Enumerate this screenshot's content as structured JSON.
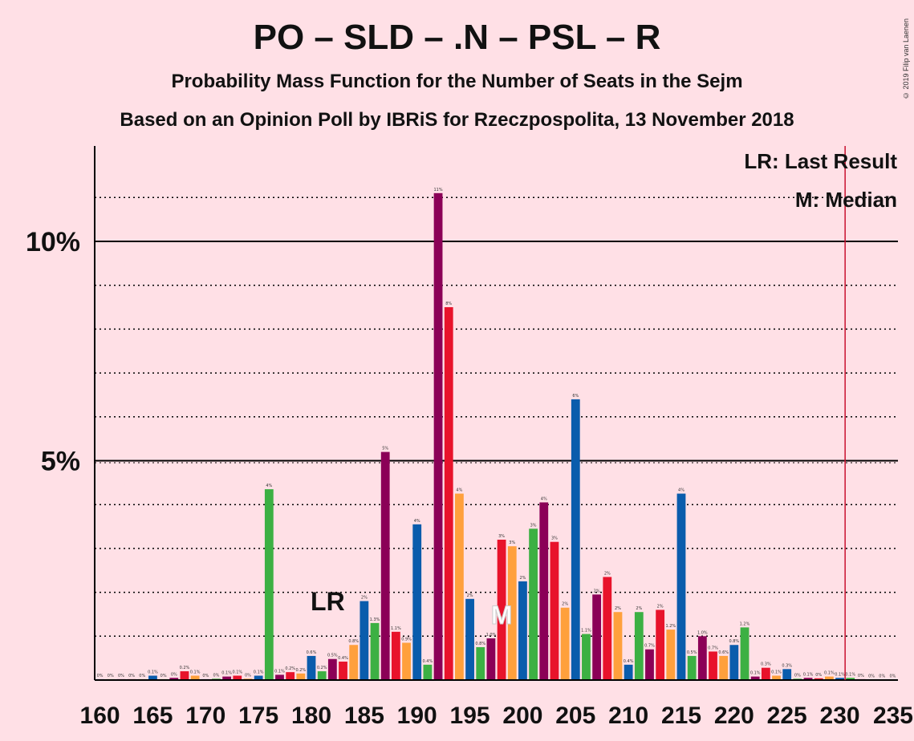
{
  "title": "PO – SLD – .N – PSL – R",
  "subtitle": "Probability Mass Function for the Number of Seats in the Sejm",
  "source": "Based on an Opinion Poll by IBRiS for Rzeczpospolita, 13 November 2018",
  "copyright": "© 2019 Filip van Laenen",
  "legend": {
    "last_result": "LR: Last Result",
    "median": "M: Median"
  },
  "markers": {
    "last_result_label": "LR",
    "last_result_seat": 182,
    "median_label": "M",
    "median_seat": 198,
    "majority_seat": 231
  },
  "colors": {
    "blue": "#0A5CAC",
    "green": "#3CB043",
    "purple": "#8B0057",
    "red": "#E8132B",
    "orange": "#FFA03C",
    "majority_line": "#C8102E"
  },
  "chart_data": {
    "type": "bar",
    "xlabel": "",
    "ylabel": "",
    "xlim": [
      160,
      235
    ],
    "ylim": [
      0,
      12
    ],
    "x_ticks": [
      160,
      165,
      170,
      175,
      180,
      185,
      190,
      195,
      200,
      205,
      210,
      215,
      220,
      225,
      230,
      235
    ],
    "y_ticks": [
      {
        "value": 5,
        "label": "5%"
      },
      {
        "value": 10,
        "label": "10%"
      }
    ],
    "grid": "dotted horizontal every 1%",
    "x": [
      160,
      161,
      162,
      163,
      164,
      165,
      166,
      167,
      168,
      169,
      170,
      171,
      172,
      173,
      174,
      175,
      176,
      177,
      178,
      179,
      180,
      181,
      182,
      183,
      184,
      185,
      186,
      187,
      188,
      189,
      190,
      191,
      192,
      193,
      194,
      195,
      196,
      197,
      198,
      199,
      200,
      201,
      202,
      203,
      204,
      205,
      206,
      207,
      208,
      209,
      210,
      211,
      212,
      213,
      214,
      215,
      216,
      217,
      218,
      219,
      220,
      221,
      222,
      223,
      224,
      225,
      226,
      227,
      228,
      229,
      230,
      231,
      232,
      233,
      234,
      235
    ],
    "values": [
      0.02,
      0.02,
      0.02,
      0.02,
      0.02,
      0.1,
      0.02,
      0.05,
      0.2,
      0.1,
      0.02,
      0.03,
      0.08,
      0.1,
      0.03,
      0.1,
      4.35,
      0.12,
      0.18,
      0.15,
      0.55,
      0.2,
      0.48,
      0.42,
      0.8,
      1.8,
      1.3,
      5.2,
      1.1,
      0.85,
      3.55,
      0.35,
      11.1,
      8.5,
      4.25,
      1.85,
      0.75,
      0.95,
      3.2,
      3.05,
      2.25,
      3.45,
      4.05,
      3.15,
      1.65,
      6.4,
      1.05,
      1.95,
      2.35,
      1.55,
      0.35,
      1.55,
      0.7,
      1.6,
      1.15,
      4.25,
      0.55,
      1.0,
      0.65,
      0.55,
      0.8,
      1.2,
      0.08,
      0.28,
      0.1,
      0.25,
      0.03,
      0.05,
      0.04,
      0.08,
      0.05,
      0.05,
      0.02,
      0.01,
      0.01,
      0.01
    ],
    "labels": [
      "0%",
      "0%",
      "0%",
      "0%",
      "0%",
      "0.1%",
      "0%",
      "0%",
      "0.2%",
      "0.1%",
      "0%",
      "0%",
      "0.1%",
      "0.1%",
      "0%",
      "0.1%",
      "4%",
      "0.1%",
      "0.2%",
      "0.2%",
      "0.6%",
      "0.2%",
      "0.5%",
      "0.4%",
      "0.8%",
      "2%",
      "1.3%",
      "5%",
      "1.1%",
      "0.9%",
      "4%",
      "0.4%",
      "11%",
      "8%",
      "4%",
      "2%",
      "0.8%",
      "1.0%",
      "3%",
      "3%",
      "2%",
      "3%",
      "4%",
      "3%",
      "2%",
      "6%",
      "1.1%",
      "2%",
      "2%",
      "2%",
      "0.4%",
      "2%",
      "0.7%",
      "2%",
      "1.2%",
      "4%",
      "0.5%",
      "1.0%",
      "0.7%",
      "0.6%",
      "0.8%",
      "1.2%",
      "0.1%",
      "0.3%",
      "0.1%",
      "0.3%",
      "0%",
      "0.1%",
      "0%",
      "0.1%",
      "0.1%",
      "0.1%",
      "0%",
      "0%",
      "0%",
      "0%"
    ]
  }
}
